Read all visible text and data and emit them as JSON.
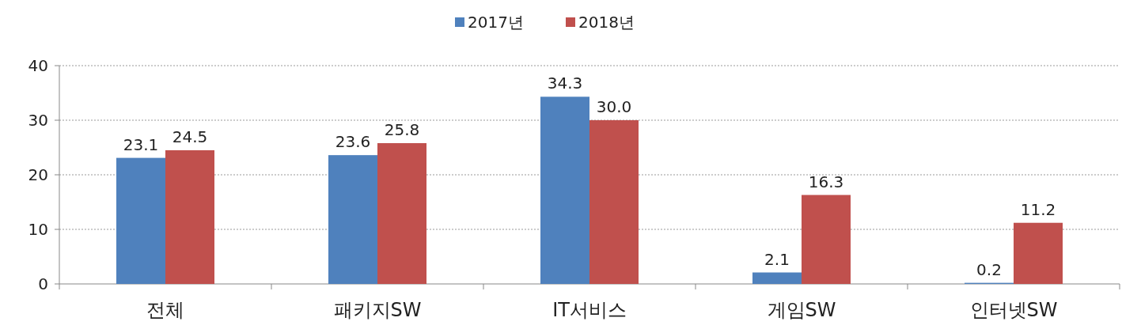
{
  "chart_data": {
    "type": "bar",
    "categories": [
      "전체",
      "패키지SW",
      "IT서비스",
      "게임SW",
      "인터넷SW"
    ],
    "series": [
      {
        "name": "2017년",
        "color": "#4f81bd",
        "values": [
          23.1,
          23.6,
          34.3,
          2.1,
          0.2
        ],
        "value_labels": [
          "23.1",
          "23.6",
          "34.3",
          "2.1",
          "0.2"
        ]
      },
      {
        "name": "2018년",
        "color": "#c0504d",
        "values": [
          24.5,
          25.8,
          30.0,
          16.3,
          11.2
        ],
        "value_labels": [
          "24.5",
          "25.8",
          "30.0",
          "16.3",
          "11.2"
        ]
      }
    ],
    "ylim": [
      0,
      40
    ],
    "yticks": [
      0,
      10,
      20,
      30,
      40
    ],
    "grid": "y",
    "legend": "top"
  }
}
